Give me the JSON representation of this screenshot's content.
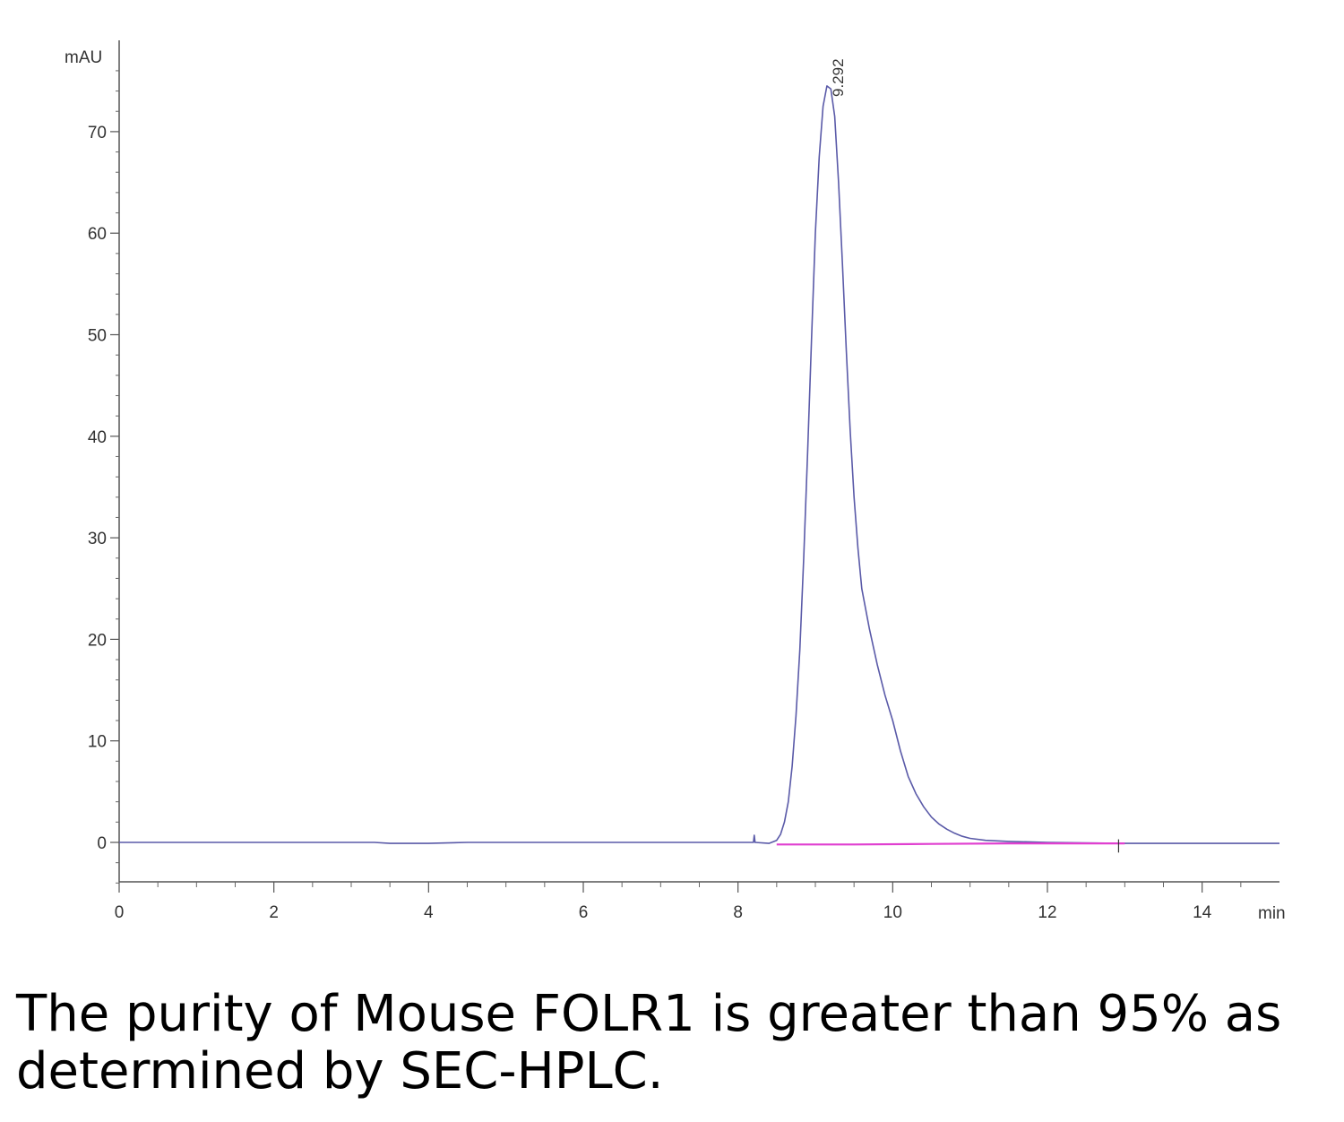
{
  "chart_data": {
    "type": "line",
    "y_unit_label": "mAU",
    "x_unit_label": "min",
    "xlim": [
      0,
      15
    ],
    "ylim": [
      -5,
      78
    ],
    "x_ticks": [
      0,
      2,
      4,
      6,
      8,
      10,
      12,
      14
    ],
    "y_ticks": [
      0,
      10,
      20,
      30,
      40,
      50,
      60,
      70
    ],
    "peak_label": "9.292",
    "peak_label_x": 9.292,
    "grid": false,
    "series": [
      {
        "color": "#5a5aa8",
        "x": [
          0,
          3.3,
          3.5,
          4.0,
          4.5,
          5.0,
          8.2,
          8.21,
          8.22,
          8.4,
          8.5,
          8.55,
          8.6,
          8.65,
          8.7,
          8.75,
          8.8,
          8.85,
          8.9,
          8.95,
          9.0,
          9.05,
          9.1,
          9.15,
          9.2,
          9.25,
          9.3,
          9.35,
          9.4,
          9.45,
          9.5,
          9.55,
          9.6,
          9.7,
          9.8,
          9.9,
          10.0,
          10.1,
          10.2,
          10.3,
          10.4,
          10.5,
          10.6,
          10.7,
          10.8,
          10.9,
          11.0,
          11.2,
          11.5,
          12.0,
          12.5,
          13.0,
          13.5,
          14.0,
          15.0
        ],
        "y": [
          0,
          0,
          -0.1,
          -0.1,
          0,
          0,
          0,
          0.7,
          0,
          -0.1,
          0.2,
          0.8,
          2.0,
          4.0,
          7.5,
          12.5,
          19.0,
          28.0,
          38.5,
          49.5,
          60.0,
          67.5,
          72.5,
          74.5,
          74.2,
          71.5,
          65.0,
          57.0,
          48.5,
          40.5,
          34.0,
          29.0,
          25.0,
          21.0,
          17.5,
          14.5,
          12.0,
          9.0,
          6.5,
          4.8,
          3.5,
          2.5,
          1.8,
          1.3,
          0.9,
          0.6,
          0.4,
          0.2,
          0.1,
          0,
          -0.05,
          -0.1,
          -0.1,
          -0.1,
          -0.1
        ]
      },
      {
        "color": "#e040d0",
        "x": [
          8.5,
          9.5,
          10.5,
          11.5,
          12.5,
          13.0
        ],
        "y": [
          -0.2,
          -0.2,
          -0.15,
          -0.1,
          -0.1,
          -0.1
        ]
      }
    ]
  },
  "caption": "The purity of Mouse FOLR1 is greater than 95% as determined by SEC-HPLC."
}
